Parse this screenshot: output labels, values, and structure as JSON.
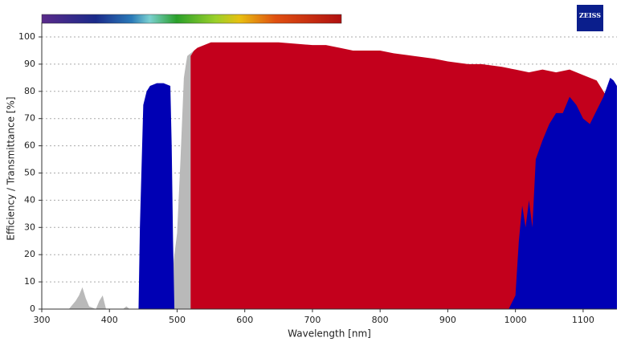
{
  "chart_data": {
    "type": "area",
    "logo": "ZEISS",
    "xlabel": "Wavelength [nm]",
    "ylabel": "Efficiency / Transmittance [%]",
    "xlim": [
      300,
      1150
    ],
    "ylim": [
      0,
      103
    ],
    "xticks": [
      300,
      400,
      500,
      600,
      700,
      800,
      900,
      1000,
      1100
    ],
    "yticks": [
      0,
      10,
      20,
      30,
      40,
      50,
      60,
      70,
      80,
      90,
      100
    ],
    "grid": true,
    "series": [
      {
        "color": "#b9b9b9",
        "x": [
          340,
          350,
          355,
          360,
          365,
          370,
          380,
          385,
          390,
          395,
          420,
          425,
          430,
          490,
          493,
          495,
          500,
          505,
          510,
          513,
          515,
          520,
          525,
          525
        ],
        "values": [
          0,
          3,
          5,
          8,
          4,
          1,
          0,
          3,
          5,
          0,
          0,
          1,
          0,
          0,
          10,
          18,
          28,
          55,
          85,
          90,
          93,
          94,
          95,
          0
        ]
      },
      {
        "color": "#c3001c",
        "x": [
          520,
          520,
          525,
          530,
          540,
          550,
          600,
          650,
          700,
          720,
          740,
          760,
          780,
          800,
          820,
          850,
          880,
          900,
          930,
          950,
          980,
          1000,
          1020,
          1040,
          1060,
          1080,
          1100,
          1120,
          1130,
          1140,
          1150,
          1150
        ],
        "values": [
          0,
          93,
          95,
          96,
          97,
          98,
          98,
          98,
          97,
          97,
          96,
          95,
          95,
          95,
          94,
          93,
          92,
          91,
          90,
          90,
          89,
          88,
          87,
          88,
          87,
          88,
          86,
          84,
          80,
          76,
          80,
          0
        ]
      },
      {
        "color": "#0000b4",
        "x": [
          443,
          445,
          450,
          455,
          460,
          470,
          480,
          490,
          492,
          494,
          496,
          990,
          1000,
          1005,
          1010,
          1015,
          1020,
          1025,
          1030,
          1040,
          1050,
          1060,
          1070,
          1080,
          1090,
          1100,
          1110,
          1120,
          1130,
          1140,
          1145,
          1150,
          1150
        ],
        "values": [
          0,
          30,
          75,
          80,
          82,
          83,
          83,
          82,
          60,
          25,
          0,
          0,
          5,
          25,
          38,
          30,
          40,
          30,
          55,
          62,
          68,
          72,
          72,
          78,
          75,
          70,
          68,
          73,
          78,
          85,
          84,
          82,
          0
        ]
      }
    ]
  }
}
